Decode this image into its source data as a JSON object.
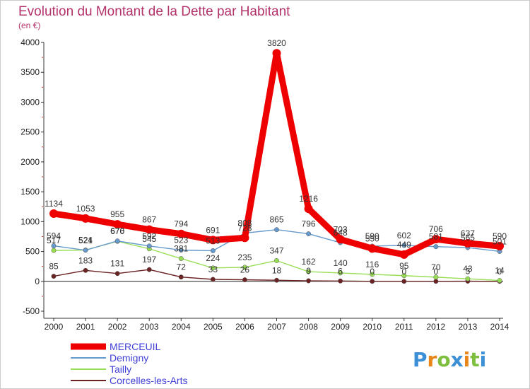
{
  "chart_data": {
    "type": "line",
    "title": "Evolution du Montant de la Dette par Habitant",
    "subtitle": "(en €)",
    "x": [
      "2000",
      "2001",
      "2002",
      "2003",
      "2004",
      "2005",
      "2006",
      "2007",
      "2008",
      "2009",
      "2010",
      "2011",
      "2012",
      "2013",
      "2014"
    ],
    "ylim": [
      -500,
      4000
    ],
    "yticks": [
      -500,
      0,
      500,
      1000,
      1500,
      2000,
      2500,
      3000,
      3500,
      4000
    ],
    "grid": false,
    "legend_position": "bottom-left",
    "series": [
      {
        "name": "MERCEUIL",
        "color": "#ee0000",
        "values": [
          1134,
          1053,
          955,
          867,
          794,
          691,
          728,
          3820,
          1216,
          703,
          550,
          449,
          706,
          637,
          590
        ]
      },
      {
        "name": "Demigny",
        "color": "#6699cc",
        "values": [
          594,
          521,
          676,
          592,
          523,
          513,
          808,
          865,
          796,
          648,
          590,
          602,
          581,
          565,
          501
        ]
      },
      {
        "name": "Tailly",
        "color": "#99dd55",
        "values": [
          517,
          524,
          670,
          545,
          381,
          224,
          235,
          347,
          162,
          140,
          116,
          95,
          70,
          43,
          14
        ]
      },
      {
        "name": "Corcelles-les-Arts",
        "color": "#6b2222",
        "values": [
          85,
          183,
          131,
          197,
          72,
          33,
          26,
          18,
          9,
          6,
          0,
          0,
          0,
          3,
          0
        ]
      }
    ]
  },
  "logo": {
    "text": "Proxiti",
    "letter_colors": [
      "#3d8fd6",
      "#e8861a",
      "#7fbf3f",
      "#3d8fd6",
      "#e8861a",
      "#7fbf3f",
      "#3d8fd6"
    ]
  }
}
